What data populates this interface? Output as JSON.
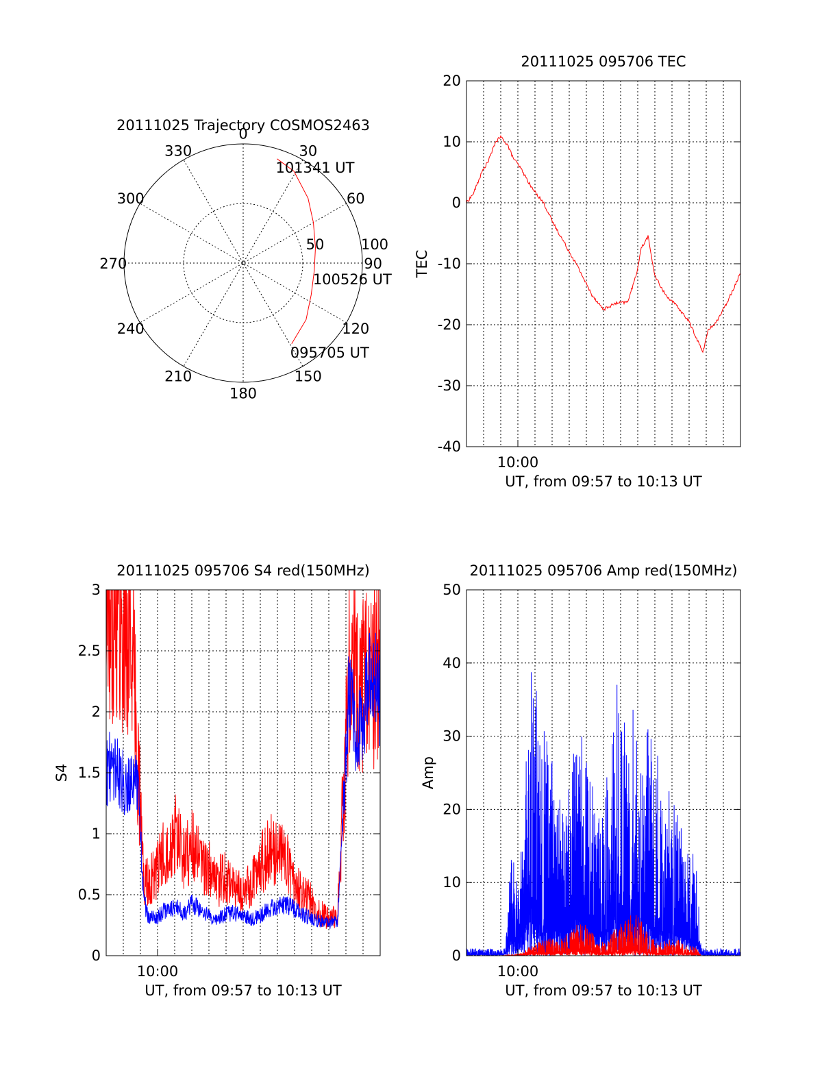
{
  "colors": {
    "red": "#ff0000",
    "blue": "#0000ff",
    "axis": "#000000",
    "background": "#ffffff"
  },
  "chart_data": [
    {
      "type": "polar",
      "title": "20111025 Trajectory COSMOS2463",
      "angle_labels": [
        "0",
        "30",
        "60",
        "90",
        "120",
        "150",
        "180",
        "210",
        "240",
        "270",
        "300",
        "330"
      ],
      "radial_labels": [
        "50",
        "100"
      ],
      "rlim": [
        0,
        100
      ],
      "grid": true,
      "series": [
        {
          "color": "red",
          "points": [
            {
              "azimuth": 18,
              "radius": 92
            },
            {
              "azimuth": 29,
              "radius": 88
            },
            {
              "azimuth": 45,
              "radius": 77
            },
            {
              "azimuth": 60,
              "radius": 68
            },
            {
              "azimuth": 78,
              "radius": 62
            },
            {
              "azimuth": 96,
              "radius": 60
            },
            {
              "azimuth": 115,
              "radius": 63
            },
            {
              "azimuth": 132,
              "radius": 71
            },
            {
              "azimuth": 149,
              "radius": 79
            }
          ]
        }
      ],
      "annotations": [
        {
          "text": "101341 UT",
          "azimuth": 18,
          "radius": 92
        },
        {
          "text": "100526 UT",
          "azimuth": 96,
          "radius": 60
        },
        {
          "text": "095705 UT",
          "azimuth": 149,
          "radius": 79
        }
      ]
    },
    {
      "type": "line",
      "title": "20111025 095706 TEC",
      "xlabel": "UT, from 09:57 to 10:13 UT",
      "ylabel": "TEC",
      "xlim": [
        0,
        16
      ],
      "xtick_label": "10:00",
      "xtick_value": 3,
      "ylim": [
        -40,
        20
      ],
      "yticks": [
        -40,
        -30,
        -20,
        -10,
        0,
        10,
        20
      ],
      "grid": true,
      "series": [
        {
          "color": "red",
          "x": [
            0,
            0.4,
            0.9,
            1.3,
            1.7,
            2.0,
            2.4,
            2.7,
            3.2,
            3.8,
            4.5,
            5.0,
            5.7,
            6.5,
            7.3,
            8.0,
            8.7,
            9.4,
            9.9,
            10.2,
            10.6,
            11.0,
            11.6,
            12.3,
            13.0,
            13.8,
            14.1,
            14.6,
            15.1,
            15.6,
            16.0
          ],
          "y": [
            0,
            1.5,
            5,
            7,
            10,
            10.8,
            9.5,
            7.5,
            5.5,
            2.5,
            0,
            -3,
            -6.5,
            -10.5,
            -15,
            -17.5,
            -16.5,
            -16.3,
            -12,
            -7.5,
            -5.5,
            -12,
            -15,
            -17,
            -19.5,
            -24.5,
            -21,
            -19.5,
            -17,
            -14,
            -11.5
          ]
        }
      ]
    },
    {
      "type": "line",
      "title": "20111025 095706 S4 red(150MHz)",
      "xlabel": "UT, from 09:57 to 10:13 UT",
      "ylabel": "S4",
      "xlim": [
        0,
        16
      ],
      "xtick_label": "10:00",
      "xtick_value": 3,
      "ylim": [
        0,
        3
      ],
      "yticks": [
        "0",
        "0.5",
        "1",
        "1.5",
        "2",
        "2.5",
        "3"
      ],
      "grid": true,
      "series": [
        {
          "color": "red",
          "x": [
            0,
            0.5,
            1.0,
            1.5,
            1.9,
            2.2,
            2.5,
            3.0,
            3.5,
            4.0,
            4.5,
            5.0,
            5.5,
            6.0,
            6.5,
            7.0,
            7.5,
            8.0,
            8.5,
            9.0,
            9.5,
            10.0,
            10.5,
            11.0,
            11.5,
            12.0,
            12.5,
            13.0,
            13.5,
            13.8,
            14.2,
            14.6,
            15.0,
            15.5,
            16.0
          ],
          "y": [
            2.8,
            2.9,
            2.7,
            2.6,
            1.5,
            0.6,
            0.6,
            0.7,
            0.9,
            1.0,
            0.8,
            0.9,
            0.75,
            0.7,
            0.6,
            0.65,
            0.55,
            0.5,
            0.6,
            0.75,
            0.85,
            0.9,
            0.8,
            0.6,
            0.5,
            0.45,
            0.35,
            0.3,
            0.3,
            1.2,
            2.4,
            2.3,
            2.2,
            2.3,
            2.4
          ]
        },
        {
          "color": "blue",
          "x": [
            0,
            0.5,
            1.0,
            1.5,
            1.9,
            2.2,
            2.5,
            3.0,
            3.5,
            4.0,
            4.5,
            5.0,
            5.5,
            6.0,
            6.5,
            7.0,
            7.5,
            8.0,
            8.5,
            9.0,
            9.5,
            10.0,
            10.5,
            11.0,
            11.5,
            12.0,
            12.5,
            13.0,
            13.5,
            13.8,
            14.2,
            14.6,
            15.0,
            15.5,
            16.0
          ],
          "y": [
            1.5,
            1.6,
            1.4,
            1.5,
            1.3,
            0.45,
            0.3,
            0.32,
            0.38,
            0.4,
            0.35,
            0.42,
            0.38,
            0.32,
            0.3,
            0.34,
            0.35,
            0.32,
            0.3,
            0.33,
            0.38,
            0.4,
            0.42,
            0.38,
            0.34,
            0.3,
            0.28,
            0.27,
            0.28,
            1.0,
            2.2,
            1.8,
            2.0,
            2.3,
            2.1
          ]
        }
      ]
    },
    {
      "type": "line",
      "title": "20111025 095706 Amp red(150MHz)",
      "xlabel": "UT, from 09:57 to 10:13 UT",
      "ylabel": "Amp",
      "xlim": [
        0,
        16
      ],
      "xtick_label": "10:00",
      "xtick_value": 3,
      "ylim": [
        0,
        50
      ],
      "yticks": [
        0,
        10,
        20,
        30,
        40,
        50
      ],
      "grid": true,
      "series": [
        {
          "color": "blue",
          "x": [
            0,
            1.0,
            2.0,
            2.3,
            2.6,
            3.0,
            3.5,
            3.8,
            4.3,
            4.8,
            5.3,
            5.8,
            6.3,
            6.8,
            7.2,
            7.6,
            8.2,
            8.7,
            9.3,
            9.8,
            10.2,
            10.6,
            11.1,
            11.6,
            12.1,
            12.6,
            13.1,
            13.4,
            13.7,
            14.5,
            15.5,
            16.0
          ],
          "y": [
            1,
            1,
            1,
            2,
            15,
            10,
            28,
            45,
            30,
            32,
            25,
            20,
            40,
            30,
            28,
            18,
            25,
            38,
            32,
            35,
            30,
            32,
            28,
            25,
            22,
            18,
            16,
            14,
            1,
            1,
            1,
            1
          ]
        },
        {
          "color": "red",
          "x": [
            0,
            2.0,
            2.8,
            3.3,
            3.8,
            4.3,
            4.8,
            5.3,
            5.8,
            6.3,
            6.8,
            7.2,
            7.6,
            8.2,
            8.7,
            9.3,
            9.8,
            10.2,
            10.6,
            11.1,
            11.6,
            12.1,
            12.6,
            13.1,
            13.5,
            13.7,
            16.0
          ],
          "y": [
            0,
            0,
            0.2,
            0.5,
            1.5,
            2,
            2.5,
            2,
            3,
            4,
            5,
            4,
            2,
            2,
            4,
            5,
            6,
            5,
            3,
            2,
            2,
            2.5,
            2,
            1.5,
            1,
            0,
            0
          ]
        }
      ]
    }
  ]
}
